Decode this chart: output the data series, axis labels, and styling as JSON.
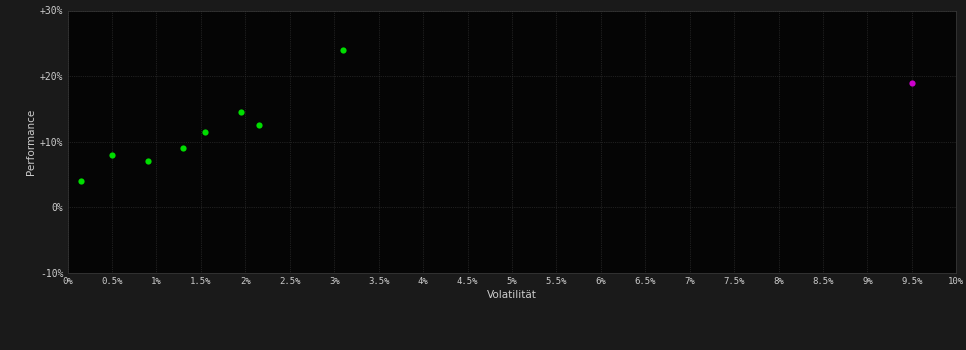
{
  "green_points": [
    [
      0.15,
      4.0
    ],
    [
      0.5,
      8.0
    ],
    [
      0.9,
      7.0
    ],
    [
      1.3,
      9.0
    ],
    [
      1.55,
      11.5
    ],
    [
      1.95,
      14.5
    ],
    [
      2.15,
      12.5
    ],
    [
      3.1,
      24.0
    ]
  ],
  "magenta_points": [
    [
      9.5,
      19.0
    ]
  ],
  "green_color": "#00dd00",
  "magenta_color": "#cc00cc",
  "background_color": "#1a1a1a",
  "plot_bg_color": "#050505",
  "grid_color": "#3a3a3a",
  "text_color": "#cccccc",
  "xlabel": "Volatilität",
  "ylabel": "Performance",
  "xlim": [
    0,
    10.0
  ],
  "ylim": [
    -10,
    30
  ],
  "xtick_labels": [
    "0%",
    "0.5%",
    "1%",
    "1.5%",
    "2%",
    "2.5%",
    "3%",
    "3.5%",
    "4%",
    "4.5%",
    "5%",
    "5.5%",
    "6%",
    "6.5%",
    "7%",
    "7.5%",
    "8%",
    "8.5%",
    "9%",
    "9.5%",
    "10%"
  ],
  "xtick_positions": [
    0,
    0.5,
    1.0,
    1.5,
    2.0,
    2.5,
    3.0,
    3.5,
    4.0,
    4.5,
    5.0,
    5.5,
    6.0,
    6.5,
    7.0,
    7.5,
    8.0,
    8.5,
    9.0,
    9.5,
    10.0
  ],
  "ytick_labels": [
    "-10%",
    "0%",
    "+10%",
    "+20%",
    "+30%"
  ],
  "ytick_positions": [
    -10,
    0,
    10,
    20,
    30
  ],
  "marker_size": 20,
  "figsize": [
    9.66,
    3.5
  ],
  "dpi": 100
}
